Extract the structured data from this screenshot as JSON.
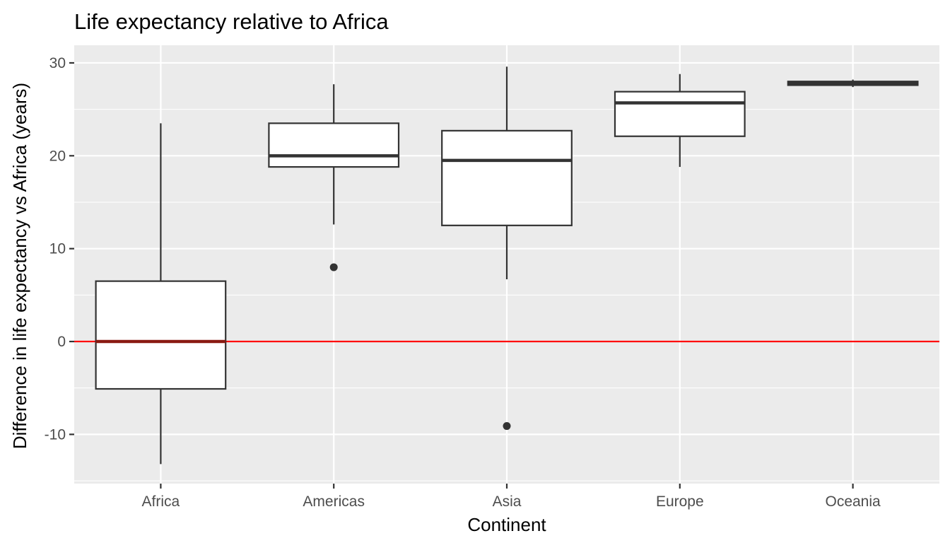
{
  "chart_data": {
    "type": "boxplot",
    "title": "Life expectancy relative to Africa",
    "xlabel": "Continent",
    "ylabel": "Difference in life expectancy vs Africa (years)",
    "ylim": [
      -15.3,
      31.9
    ],
    "y_ticks": [
      -10,
      0,
      10,
      20,
      30
    ],
    "y_tick_labels": [
      "-10",
      "0",
      "10",
      "20",
      "30"
    ],
    "grid": true,
    "reference_line": {
      "y": 0,
      "color": "#ff0000"
    },
    "categories": [
      "Africa",
      "Americas",
      "Asia",
      "Europe",
      "Oceania"
    ],
    "boxes": [
      {
        "category": "Africa",
        "min": -13.2,
        "q1": -5.1,
        "median": 0.0,
        "q3": 6.5,
        "max": 23.5,
        "outliers": []
      },
      {
        "category": "Americas",
        "min": 12.6,
        "q1": 18.8,
        "median": 20.0,
        "q3": 23.5,
        "max": 27.7,
        "outliers": [
          8.0
        ]
      },
      {
        "category": "Asia",
        "min": 6.7,
        "q1": 12.5,
        "median": 19.5,
        "q3": 22.7,
        "max": 29.6,
        "outliers": [
          -9.1
        ]
      },
      {
        "category": "Europe",
        "min": 18.8,
        "q1": 22.1,
        "median": 25.7,
        "q3": 26.9,
        "max": 28.8,
        "outliers": []
      },
      {
        "category": "Oceania",
        "min": 27.4,
        "q1": 27.6,
        "median": 27.8,
        "q3": 28.0,
        "max": 28.2,
        "outliers": []
      }
    ],
    "colors": {
      "panel": "#ebebeb",
      "gridline": "#ffffff",
      "box_fill": "#ffffff",
      "box_stroke": "#333333",
      "tick_label": "#4d4d4d",
      "reference_line": "#ff0000"
    }
  }
}
